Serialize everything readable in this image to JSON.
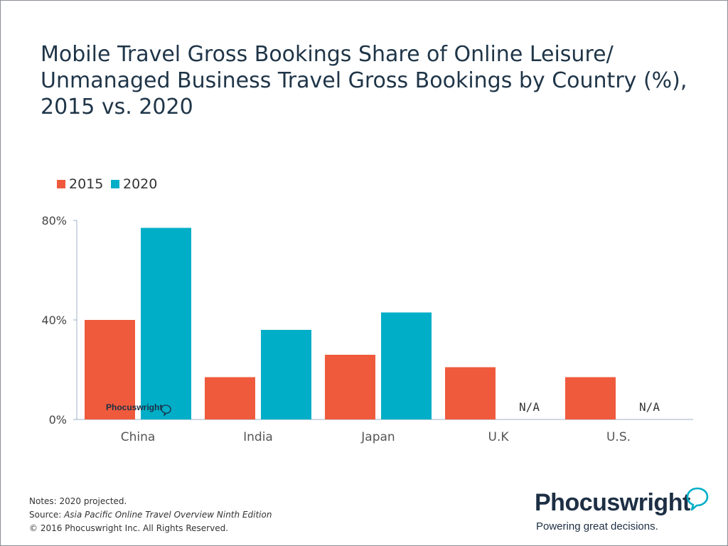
{
  "title_lines": [
    "Mobile Travel Gross Bookings Share of Online Leisure/",
    "Unmanaged Business Travel Gross Bookings by Country (%),",
    "2015 vs. 2020"
  ],
  "colors": {
    "s2015": "#ef5a3d",
    "s2020": "#00aec7",
    "axis": "#9fb3c8",
    "title": "#1f3548"
  },
  "legend": [
    {
      "label": "2015",
      "color": "#ef5a3d"
    },
    {
      "label": "2020",
      "color": "#00aec7"
    }
  ],
  "chart_data": {
    "type": "bar",
    "title": "Mobile Travel Gross Bookings Share of Online Leisure/ Unmanaged Business Travel Gross Bookings by Country (%), 2015 vs. 2020",
    "categories": [
      "China",
      "India",
      "Japan",
      "U.K",
      "U.S."
    ],
    "series": [
      {
        "name": "2015",
        "values": [
          40,
          17,
          26,
          21,
          17
        ]
      },
      {
        "name": "2020",
        "values": [
          77,
          36,
          43,
          null,
          null
        ]
      }
    ],
    "missing_label": "N/A",
    "y_ticks": [
      {
        "value": 0,
        "label": "0%"
      },
      {
        "value": 40,
        "label": "40%"
      },
      {
        "value": 80,
        "label": "80%"
      }
    ],
    "ylim": [
      0,
      80
    ],
    "xlabel": "",
    "ylabel": "",
    "grid": false,
    "legend_position": "top-left"
  },
  "watermark": "Phocuswright",
  "notes": {
    "line1": "Notes: 2020 projected.",
    "source_prefix": "Source: ",
    "source_title": "Asia Pacific Online Travel Overview Ninth Edition",
    "copyright": "© 2016 Phocuswright Inc. All Rights Reserved."
  },
  "brand": {
    "name": "Phocuswright",
    "tagline": "Powering great decisions."
  }
}
